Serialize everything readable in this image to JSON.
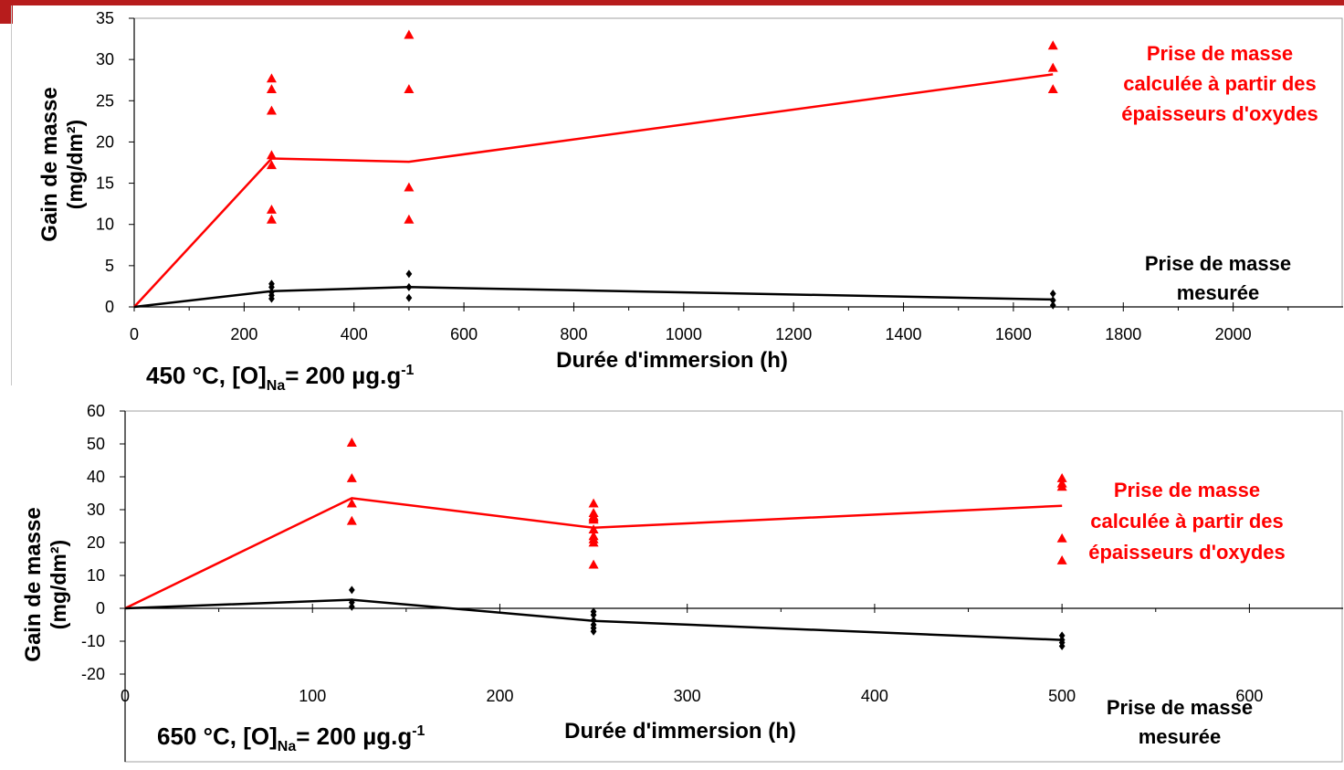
{
  "colors": {
    "accent": "#b71c1c",
    "calc": "#ff0000",
    "measured": "#000000"
  },
  "chart_data": [
    {
      "type": "scatter",
      "xlabel": "Durée d'immersion (h)",
      "ylabel_line1": "Gain de masse",
      "ylabel_line2": "(mg/dm²)",
      "xlim": [
        0,
        2200
      ],
      "ylim": [
        0,
        35
      ],
      "xticks": [
        "0",
        "200",
        "400",
        "600",
        "800",
        "1000",
        "1200",
        "1400",
        "1600",
        "1800",
        "2000"
      ],
      "yticks": [
        "0",
        "5",
        "10",
        "15",
        "20",
        "25",
        "30",
        "35"
      ],
      "condition": {
        "main": "450 °C, [O]",
        "sub": "Na",
        "eq": "= 200 µg.g",
        "sup": "-1"
      },
      "annotations": {
        "calc": [
          "Prise de masse",
          "calculée à partir des",
          "épaisseurs d'oxydes"
        ],
        "measured": [
          "Prise de masse",
          "mesurée"
        ]
      },
      "series": [
        {
          "name": "calc-points",
          "style": "triangle",
          "color": "#ff0000",
          "x": [
            250,
            250,
            250,
            250,
            250,
            250,
            250,
            500,
            500,
            500,
            500,
            1672,
            1672,
            1672
          ],
          "y": [
            27.7,
            26.4,
            23.8,
            18.4,
            17.2,
            11.8,
            10.6,
            33.0,
            26.4,
            14.5,
            10.6,
            31.7,
            29.0,
            26.4
          ]
        },
        {
          "name": "calc-mean",
          "style": "line",
          "color": "#ff0000",
          "x": [
            0,
            250,
            500,
            1672
          ],
          "y": [
            0,
            18.0,
            17.6,
            28.2
          ]
        },
        {
          "name": "measured-points",
          "style": "diamond",
          "color": "#000000",
          "x": [
            250,
            250,
            250,
            250,
            250,
            500,
            500,
            500,
            1672,
            1672,
            1672
          ],
          "y": [
            2.8,
            2.4,
            1.8,
            1.4,
            1.0,
            4.0,
            2.4,
            1.1,
            1.6,
            0.8,
            0.2
          ]
        },
        {
          "name": "measured-mean",
          "style": "line",
          "color": "#000000",
          "x": [
            0,
            250,
            500,
            1672
          ],
          "y": [
            0,
            1.9,
            2.4,
            0.9
          ]
        }
      ]
    },
    {
      "type": "scatter",
      "xlabel": "Durée d'immersion (h)",
      "ylabel_line1": "Gain de masse",
      "ylabel_line2": "(mg/dm²)",
      "xlim": [
        0,
        650
      ],
      "ylim": [
        -20,
        60
      ],
      "xticks": [
        "0",
        "100",
        "200",
        "300",
        "400",
        "500",
        "600"
      ],
      "yticks": [
        "-20",
        "-10",
        "0",
        "10",
        "20",
        "30",
        "40",
        "50",
        "60"
      ],
      "condition": {
        "main": "650 °C, [O]",
        "sub": "Na",
        "eq": "= 200 µg.g",
        "sup": "-1"
      },
      "annotations": {
        "calc": [
          "Prise de masse",
          "calculée à partir des",
          "épaisseurs d'oxydes"
        ],
        "measured": [
          "Prise de masse",
          "mesurée"
        ]
      },
      "series": [
        {
          "name": "calc-points",
          "style": "triangle",
          "color": "#ff0000",
          "x": [
            121,
            121,
            121,
            121,
            250,
            250,
            250,
            250,
            250,
            250,
            250,
            250,
            250,
            250,
            500,
            500,
            500,
            500,
            500
          ],
          "y": [
            50.4,
            39.6,
            31.9,
            26.6,
            31.9,
            29.0,
            28.0,
            27.0,
            24.0,
            22.0,
            21.0,
            20.0,
            13.3,
            27.5,
            39.6,
            38.0,
            37.0,
            21.3,
            14.6
          ]
        },
        {
          "name": "calc-mean",
          "style": "line",
          "color": "#ff0000",
          "x": [
            0,
            121,
            250,
            500
          ],
          "y": [
            0,
            33.5,
            24.5,
            31.2
          ]
        },
        {
          "name": "measured-points",
          "style": "diamond",
          "color": "#000000",
          "x": [
            121,
            121,
            121,
            250,
            250,
            250,
            250,
            250,
            250,
            500,
            500,
            500,
            500
          ],
          "y": [
            5.6,
            1.8,
            0.5,
            -1.0,
            -2.0,
            -3.6,
            -5.0,
            -6.0,
            -7.0,
            -8.3,
            -9.6,
            -10.4,
            -11.5
          ]
        },
        {
          "name": "measured-mean",
          "style": "line",
          "color": "#000000",
          "x": [
            0,
            121,
            250,
            500
          ],
          "y": [
            0,
            2.6,
            -3.8,
            -9.6
          ]
        }
      ]
    }
  ]
}
